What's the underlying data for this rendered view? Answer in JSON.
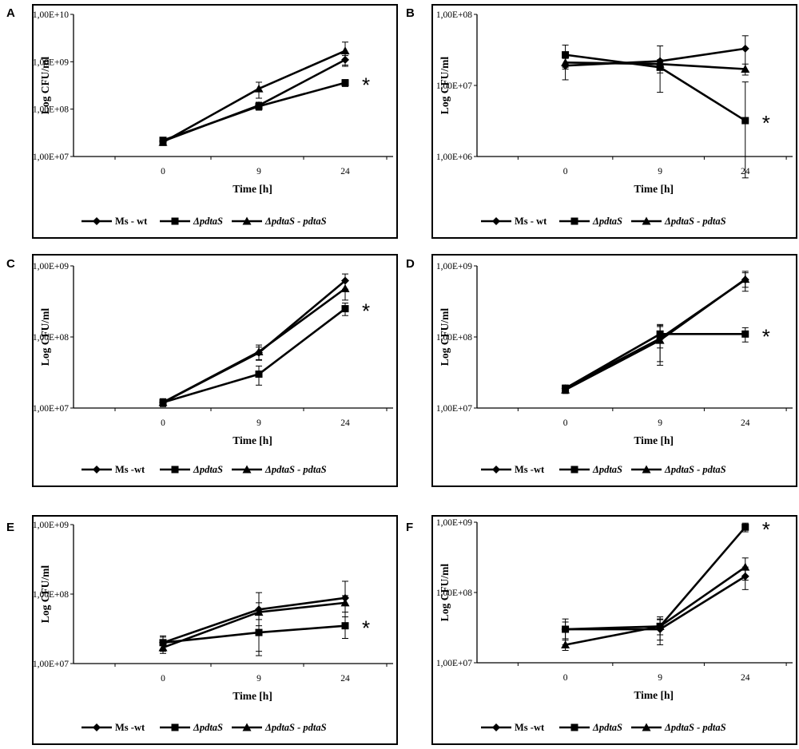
{
  "figure": {
    "chart_data": [
      {
        "panel": "A",
        "type": "line",
        "title": "",
        "xlabel": "Time [h]",
        "ylabel": "Log CFU/ml",
        "y_scale": "log",
        "ylim": [
          10000000,
          10000000000
        ],
        "y_ticks": [
          10000000,
          100000000,
          1000000000,
          10000000000
        ],
        "y_tick_labels": [
          "1,00E+07",
          "1,00E+08",
          "1,00E+09",
          "1,00E+10"
        ],
        "categories": [
          "0",
          "9",
          "24"
        ],
        "series": [
          {
            "name": "Ms - wt",
            "marker": "diamond",
            "values": [
              21000000,
              120000000,
              1100000000
            ],
            "errors": [
              3000000,
              20000000,
              250000000
            ]
          },
          {
            "name": "ΔpdtaS",
            "marker": "square",
            "values": [
              22000000,
              115000000,
              360000000
            ],
            "errors": [
              3000000,
              20000000,
              60000000
            ]
          },
          {
            "name": "ΔpdtaS - pdtaS",
            "marker": "triangle",
            "values": [
              20000000,
              270000000,
              1700000000
            ],
            "errors": [
              3000000,
              100000000,
              900000000
            ]
          }
        ],
        "significance": "*",
        "legend": [
          "Ms - wt",
          "ΔpdtaS",
          "ΔpdtaS - pdtaS"
        ]
      },
      {
        "panel": "B",
        "type": "line",
        "title": "",
        "xlabel": "Time [h]",
        "ylabel": "Log CFU/ml",
        "y_scale": "log",
        "ylim": [
          1000000,
          100000000
        ],
        "y_ticks": [
          1000000,
          10000000,
          100000000
        ],
        "y_tick_labels": [
          "1,00E+06",
          "1,00E+07",
          "1,00E+08"
        ],
        "categories": [
          "0",
          "9",
          "24"
        ],
        "series": [
          {
            "name": "Ms - wt",
            "marker": "diamond",
            "values": [
              19000000,
              22000000,
              33000000
            ],
            "errors": [
              7000000,
              14000000,
              17000000
            ]
          },
          {
            "name": "ΔpdtaS",
            "marker": "square",
            "values": [
              27000000,
              18000000,
              3200000
            ],
            "errors": [
              10000000,
              3000000,
              8000000
            ]
          },
          {
            "name": "ΔpdtaS - pdtaS",
            "marker": "triangle",
            "values": [
              21000000,
              20000000,
              17000000
            ],
            "errors": [
              3000000,
              3000000,
              3000000
            ]
          }
        ],
        "significance": "*",
        "legend": [
          "Ms - wt",
          "ΔpdtaS",
          "ΔpdtaS - pdtaS"
        ]
      },
      {
        "panel": "C",
        "type": "line",
        "title": "",
        "xlabel": "Time [h]",
        "ylabel": "Log CFU/ml",
        "y_scale": "log",
        "ylim": [
          10000000,
          1000000000
        ],
        "y_ticks": [
          10000000,
          100000000,
          1000000000
        ],
        "y_tick_labels": [
          "1,00E+07",
          "1,00E+08",
          "1,00E+09"
        ],
        "categories": [
          "0",
          "9",
          "24"
        ],
        "series": [
          {
            "name": "Ms -wt",
            "marker": "diamond",
            "values": [
              12000000,
              60000000,
              620000000
            ],
            "errors": [
              1500000,
              12000000,
              150000000
            ]
          },
          {
            "name": "ΔpdtaS",
            "marker": "square",
            "values": [
              12000000,
              30000000,
              250000000
            ],
            "errors": [
              1500000,
              9000000,
              50000000
            ]
          },
          {
            "name": "ΔpdtaS - pdtaS",
            "marker": "triangle",
            "values": [
              12000000,
              62000000,
              480000000
            ],
            "errors": [
              1500000,
              15000000,
              150000000
            ]
          }
        ],
        "significance": "*",
        "legend": [
          "Ms -wt",
          "ΔpdtaS",
          "ΔpdtaS - pdtaS"
        ]
      },
      {
        "panel": "D",
        "type": "line",
        "title": "",
        "xlabel": "Time [h]",
        "ylabel": "Log CFU/ml",
        "y_scale": "log",
        "ylim": [
          10000000,
          1000000000
        ],
        "y_ticks": [
          10000000,
          100000000,
          1000000000
        ],
        "y_tick_labels": [
          "1,00E+07",
          "1,00E+08",
          "1,00E+09"
        ],
        "categories": [
          "0",
          "9",
          "24"
        ],
        "series": [
          {
            "name": "Ms -wt",
            "marker": "diamond",
            "values": [
              19000000,
              95000000,
              640000000
            ],
            "errors": [
              2000000,
              50000000,
              200000000
            ]
          },
          {
            "name": "ΔpdtaS",
            "marker": "square",
            "values": [
              19000000,
              110000000,
              110000000
            ],
            "errors": [
              2000000,
              40000000,
              25000000
            ]
          },
          {
            "name": "ΔpdtaS - pdtaS",
            "marker": "triangle",
            "values": [
              18000000,
              90000000,
              650000000
            ],
            "errors": [
              2000000,
              50000000,
              150000000
            ]
          }
        ],
        "significance": "*",
        "legend": [
          "Ms -wt",
          "ΔpdtaS",
          "ΔpdtaS - pdtaS"
        ]
      },
      {
        "panel": "E",
        "type": "line",
        "title": "",
        "xlabel": "Time [h]",
        "ylabel": "Log CFU/ml",
        "y_scale": "log",
        "ylim": [
          10000000,
          1000000000
        ],
        "y_ticks": [
          10000000,
          100000000,
          1000000000
        ],
        "y_tick_labels": [
          "1,00E+07",
          "1,00E+08",
          "1,00E+09"
        ],
        "categories": [
          "0",
          "9",
          "24"
        ],
        "series": [
          {
            "name": "Ms -wt",
            "marker": "diamond",
            "values": [
              20000000,
              60000000,
              88000000
            ],
            "errors": [
              5000000,
              45000000,
              65000000
            ]
          },
          {
            "name": "ΔpdtaS",
            "marker": "square",
            "values": [
              20000000,
              28000000,
              35000000
            ],
            "errors": [
              4000000,
              15000000,
              12000000
            ]
          },
          {
            "name": "ΔpdtaS - pdtaS",
            "marker": "triangle",
            "values": [
              17000000,
              55000000,
              75000000
            ],
            "errors": [
              3000000,
              20000000,
              20000000
            ]
          }
        ],
        "significance": "*",
        "legend": [
          "Ms -wt",
          "ΔpdtaS",
          "ΔpdtaS - pdtaS"
        ]
      },
      {
        "panel": "F",
        "type": "line",
        "title": "",
        "xlabel": "Time [h]",
        "ylabel": "Log CFU/ml",
        "y_scale": "log",
        "ylim": [
          10000000,
          1000000000
        ],
        "y_ticks": [
          10000000,
          100000000,
          1000000000
        ],
        "y_tick_labels": [
          "1,00E+07",
          "1,00E+08",
          "1,00E+09"
        ],
        "categories": [
          "0",
          "9",
          "24"
        ],
        "series": [
          {
            "name": "Ms -wt",
            "marker": "diamond",
            "values": [
              30000000,
              30000000,
              170000000
            ],
            "errors": [
              12000000,
              12000000,
              60000000
            ]
          },
          {
            "name": "ΔpdtaS",
            "marker": "square",
            "values": [
              30000000,
              33000000,
              850000000
            ],
            "errors": [
              8000000,
              12000000,
              120000000
            ]
          },
          {
            "name": "ΔpdtaS - pdtaS",
            "marker": "triangle",
            "values": [
              18000000,
              33000000,
              230000000
            ],
            "errors": [
              3000000,
              8000000,
              80000000
            ]
          }
        ],
        "significance": "*",
        "legend": [
          "Ms -wt",
          "ΔpdtaS",
          "ΔpdtaS - pdtaS"
        ]
      }
    ]
  }
}
